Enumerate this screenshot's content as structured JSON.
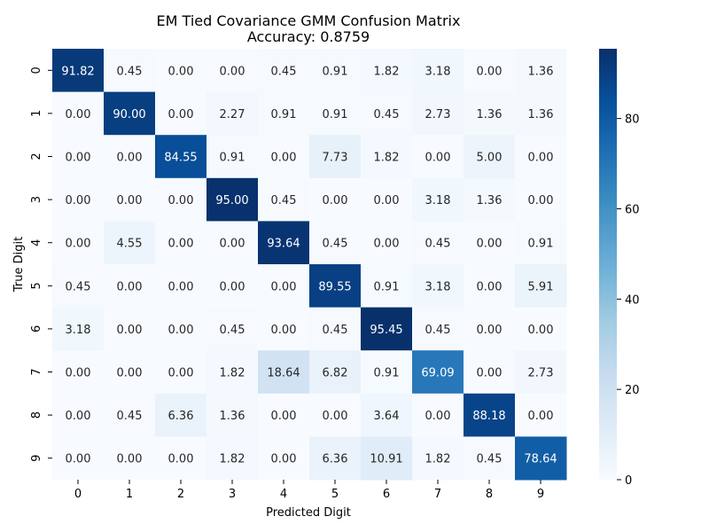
{
  "chart_data": {
    "type": "heatmap",
    "title": "EM Tied Covariance GMM Confusion Matrix",
    "subtitle": "Accuracy: 0.8759",
    "xlabel": "Predicted Digit",
    "ylabel": "True Digit",
    "x_categories": [
      "0",
      "1",
      "2",
      "3",
      "4",
      "5",
      "6",
      "7",
      "8",
      "9"
    ],
    "y_categories": [
      "0",
      "1",
      "2",
      "3",
      "4",
      "5",
      "6",
      "7",
      "8",
      "9"
    ],
    "value_labels": [
      [
        "91.82",
        "0.45",
        "0.00",
        "0.00",
        "0.45",
        "0.91",
        "1.82",
        "3.18",
        "0.00",
        "1.36"
      ],
      [
        "0.00",
        "90.00",
        "0.00",
        "2.27",
        "0.91",
        "0.91",
        "0.45",
        "2.73",
        "1.36",
        "1.36"
      ],
      [
        "0.00",
        "0.00",
        "84.55",
        "0.91",
        "0.00",
        "7.73",
        "1.82",
        "0.00",
        "5.00",
        "0.00"
      ],
      [
        "0.00",
        "0.00",
        "0.00",
        "95.00",
        "0.45",
        "0.00",
        "0.00",
        "3.18",
        "1.36",
        "0.00"
      ],
      [
        "0.00",
        "4.55",
        "0.00",
        "0.00",
        "93.64",
        "0.45",
        "0.00",
        "0.45",
        "0.00",
        "0.91"
      ],
      [
        "0.45",
        "0.00",
        "0.00",
        "0.00",
        "0.00",
        "89.55",
        "0.91",
        "3.18",
        "0.00",
        "5.91"
      ],
      [
        "3.18",
        "0.00",
        "0.00",
        "0.45",
        "0.00",
        "0.45",
        "95.45",
        "0.45",
        "0.00",
        "0.00"
      ],
      [
        "0.00",
        "0.00",
        "0.00",
        "1.82",
        "18.64",
        "6.82",
        "0.91",
        "69.09",
        "0.00",
        "2.73"
      ],
      [
        "0.00",
        "0.45",
        "6.36",
        "1.36",
        "0.00",
        "0.00",
        "3.64",
        "0.00",
        "88.18",
        "0.00"
      ],
      [
        "0.00",
        "0.00",
        "0.00",
        "1.82",
        "0.00",
        "6.36",
        "10.91",
        "1.82",
        "0.45",
        "78.64"
      ]
    ],
    "colorbar": {
      "range": [
        0,
        95.45
      ],
      "ticks": [
        "0",
        "20",
        "40",
        "60",
        "80"
      ],
      "colormap": "Blues",
      "colors": [
        "#f7fbff",
        "#deebf7",
        "#c6dbef",
        "#9ecae1",
        "#6baed6",
        "#4292c6",
        "#2171b5",
        "#08519c",
        "#08306b"
      ]
    },
    "annotation_colors": {
      "light": "#ffffff",
      "dark": "#262626"
    },
    "grid": false,
    "legend": "colorbar-right"
  }
}
